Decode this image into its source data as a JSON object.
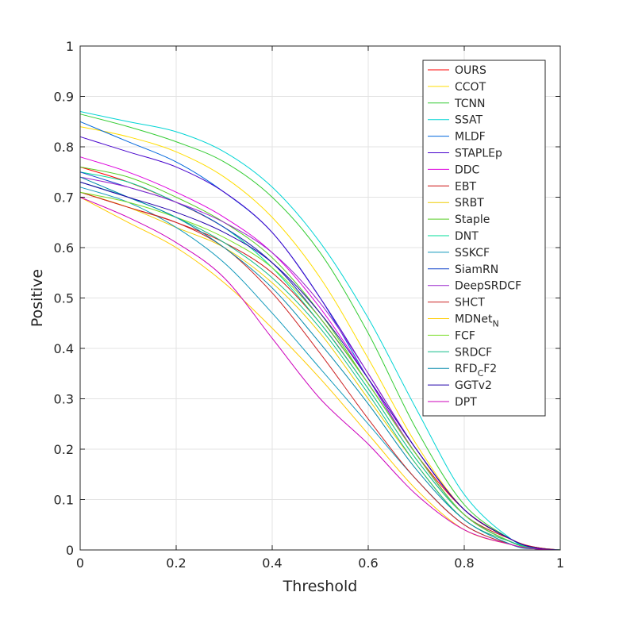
{
  "chart_data": {
    "type": "line",
    "xlabel": "Threshold",
    "ylabel": "Positive",
    "xlim": [
      0,
      1
    ],
    "ylim": [
      0,
      1
    ],
    "xticks": [
      "0",
      "0.2",
      "0.4",
      "0.6",
      "0.8",
      "1"
    ],
    "yticks": [
      "0",
      "0.1",
      "0.2",
      "0.3",
      "0.4",
      "0.5",
      "0.6",
      "0.7",
      "0.8",
      "0.9",
      "1"
    ],
    "grid": true,
    "legend_position": "top-right",
    "x": [
      0,
      0.1,
      0.2,
      0.3,
      0.4,
      0.5,
      0.6,
      0.7,
      0.8,
      0.9,
      0.95,
      1
    ],
    "series": [
      {
        "name": "OURS",
        "color": "#ff0000",
        "values": [
          0.76,
          0.73,
          0.69,
          0.64,
          0.57,
          0.46,
          0.33,
          0.19,
          0.08,
          0.02,
          0.005,
          0
        ]
      },
      {
        "name": "CCOT",
        "color": "#ffdd00",
        "values": [
          0.84,
          0.82,
          0.79,
          0.74,
          0.66,
          0.54,
          0.38,
          0.21,
          0.08,
          0.02,
          0.004,
          0
        ]
      },
      {
        "name": "TCNN",
        "color": "#33cc33",
        "values": [
          0.865,
          0.84,
          0.81,
          0.77,
          0.7,
          0.59,
          0.43,
          0.24,
          0.09,
          0.02,
          0.004,
          0
        ]
      },
      {
        "name": "SSAT",
        "color": "#00d4d4",
        "values": [
          0.87,
          0.85,
          0.83,
          0.79,
          0.72,
          0.61,
          0.46,
          0.28,
          0.11,
          0.02,
          0.005,
          0
        ]
      },
      {
        "name": "MLDF",
        "color": "#0066dd",
        "values": [
          0.85,
          0.81,
          0.77,
          0.71,
          0.63,
          0.5,
          0.34,
          0.19,
          0.07,
          0.015,
          0.003,
          0
        ]
      },
      {
        "name": "STAPLEp",
        "color": "#4400cc",
        "values": [
          0.82,
          0.79,
          0.76,
          0.71,
          0.63,
          0.5,
          0.35,
          0.2,
          0.08,
          0.02,
          0.004,
          0
        ]
      },
      {
        "name": "DDC",
        "color": "#dd00dd",
        "values": [
          0.78,
          0.75,
          0.71,
          0.66,
          0.59,
          0.48,
          0.34,
          0.19,
          0.07,
          0.015,
          0.003,
          0
        ]
      },
      {
        "name": "EBT",
        "color": "#cc1111",
        "values": [
          0.71,
          0.68,
          0.65,
          0.61,
          0.55,
          0.45,
          0.32,
          0.18,
          0.07,
          0.02,
          0.005,
          0
        ]
      },
      {
        "name": "SRBT",
        "color": "#eecc00",
        "values": [
          0.71,
          0.68,
          0.64,
          0.6,
          0.53,
          0.43,
          0.3,
          0.17,
          0.06,
          0.015,
          0.003,
          0
        ]
      },
      {
        "name": "Staple",
        "color": "#55cc22",
        "values": [
          0.76,
          0.74,
          0.7,
          0.65,
          0.58,
          0.47,
          0.33,
          0.19,
          0.07,
          0.015,
          0.003,
          0
        ]
      },
      {
        "name": "DNT",
        "color": "#00dd99",
        "values": [
          0.75,
          0.73,
          0.69,
          0.64,
          0.56,
          0.45,
          0.32,
          0.18,
          0.07,
          0.015,
          0.003,
          0
        ]
      },
      {
        "name": "SSKCF",
        "color": "#1199bb",
        "values": [
          0.72,
          0.69,
          0.64,
          0.57,
          0.47,
          0.36,
          0.25,
          0.14,
          0.05,
          0.01,
          0.002,
          0
        ]
      },
      {
        "name": "SiamRN",
        "color": "#1144cc",
        "values": [
          0.75,
          0.72,
          0.69,
          0.64,
          0.57,
          0.46,
          0.33,
          0.19,
          0.07,
          0.015,
          0.003,
          0
        ]
      },
      {
        "name": "DeepSRDCF",
        "color": "#9922cc",
        "values": [
          0.74,
          0.72,
          0.69,
          0.65,
          0.59,
          0.49,
          0.35,
          0.2,
          0.08,
          0.02,
          0.004,
          0
        ]
      },
      {
        "name": "SHCT",
        "color": "#cc2222",
        "values": [
          0.71,
          0.68,
          0.65,
          0.6,
          0.51,
          0.39,
          0.26,
          0.14,
          0.05,
          0.01,
          0.002,
          0
        ]
      },
      {
        "name": "MDNet",
        "name_subscript": "N",
        "color": "#ffcc00",
        "values": [
          0.7,
          0.65,
          0.6,
          0.53,
          0.44,
          0.34,
          0.23,
          0.12,
          0.04,
          0.01,
          0.002,
          0
        ]
      },
      {
        "name": "FCF",
        "color": "#77dd22",
        "values": [
          0.71,
          0.69,
          0.66,
          0.62,
          0.56,
          0.46,
          0.33,
          0.19,
          0.07,
          0.015,
          0.003,
          0
        ]
      },
      {
        "name": "SRDCF",
        "color": "#11bb88",
        "values": [
          0.73,
          0.7,
          0.66,
          0.61,
          0.54,
          0.44,
          0.31,
          0.17,
          0.06,
          0.015,
          0.003,
          0
        ]
      },
      {
        "name": "RFD",
        "name_subscript": "C",
        "name_suffix": "F2",
        "color": "#0088aa",
        "values": [
          0.74,
          0.7,
          0.66,
          0.6,
          0.52,
          0.41,
          0.29,
          0.16,
          0.06,
          0.01,
          0.002,
          0
        ]
      },
      {
        "name": "GGTv2",
        "color": "#2200aa",
        "values": [
          0.73,
          0.7,
          0.67,
          0.63,
          0.57,
          0.47,
          0.34,
          0.2,
          0.08,
          0.02,
          0.004,
          0
        ]
      },
      {
        "name": "DPT",
        "color": "#cc00bb",
        "values": [
          0.7,
          0.66,
          0.61,
          0.54,
          0.42,
          0.3,
          0.21,
          0.11,
          0.04,
          0.01,
          0.002,
          0
        ]
      }
    ]
  }
}
